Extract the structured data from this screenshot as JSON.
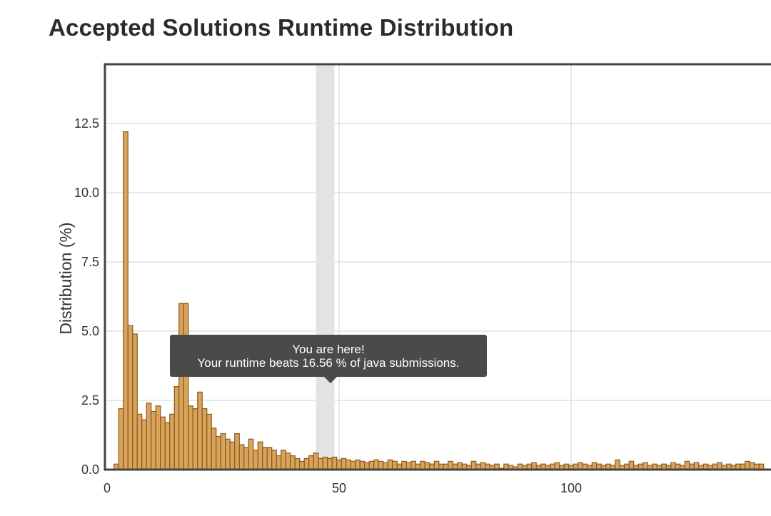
{
  "page": {
    "title": "Accepted Solutions Runtime Distribution"
  },
  "tooltip": {
    "line1": "You are here!",
    "line2": "Your runtime beats 16.56 % of java submissions."
  },
  "colors": {
    "bar_fill": "#d9a35c",
    "bar_stroke": "#8a5a1c",
    "highlight_band": "#e3e3e3",
    "grid": "#dcdcdc",
    "frame": "#444444",
    "tooltip_bg": "#4a4a4a"
  },
  "chart_data": {
    "type": "bar",
    "title": "Accepted Solutions Runtime Distribution",
    "xlabel": "",
    "ylabel": "Distribution (%)",
    "xlim": [
      0,
      142
    ],
    "ylim": [
      0,
      14.5
    ],
    "x_ticks": [
      0,
      50,
      100
    ],
    "x_tick_labels": [
      "0",
      "50",
      "100"
    ],
    "y_ticks": [
      0,
      2.5,
      5,
      7.5,
      10,
      12.5
    ],
    "y_tick_labels": [
      "0.0",
      "2.5",
      "5.0",
      "7.5",
      "10.0",
      "12.5"
    ],
    "grid": true,
    "highlight_x": 47,
    "x": [
      2,
      3,
      4,
      5,
      6,
      7,
      8,
      9,
      10,
      11,
      12,
      13,
      14,
      15,
      16,
      17,
      18,
      19,
      20,
      21,
      22,
      23,
      24,
      25,
      26,
      27,
      28,
      29,
      30,
      31,
      32,
      33,
      34,
      35,
      36,
      37,
      38,
      39,
      40,
      41,
      42,
      43,
      44,
      45,
      46,
      47,
      48,
      49,
      50,
      51,
      52,
      53,
      54,
      55,
      56,
      57,
      58,
      59,
      60,
      61,
      62,
      63,
      64,
      65,
      66,
      67,
      68,
      69,
      70,
      71,
      72,
      73,
      74,
      75,
      76,
      77,
      78,
      79,
      80,
      81,
      82,
      83,
      84,
      85,
      86,
      87,
      88,
      89,
      90,
      91,
      92,
      93,
      94,
      95,
      96,
      97,
      98,
      99,
      100,
      101,
      102,
      103,
      104,
      105,
      106,
      107,
      108,
      109,
      110,
      111,
      112,
      113,
      114,
      115,
      116,
      117,
      118,
      119,
      120,
      121,
      122,
      123,
      124,
      125,
      126,
      127,
      128,
      129,
      130,
      131,
      132,
      133,
      134,
      135,
      136,
      137,
      138,
      139,
      140,
      141
    ],
    "values": [
      0.2,
      2.2,
      12.2,
      5.2,
      4.9,
      2.0,
      1.8,
      2.4,
      2.1,
      2.3,
      1.9,
      1.7,
      2.0,
      3.0,
      6.0,
      6.0,
      2.3,
      2.2,
      2.8,
      2.2,
      2.0,
      1.5,
      1.2,
      1.3,
      1.1,
      1.0,
      1.3,
      0.9,
      0.8,
      1.1,
      0.7,
      1.0,
      0.8,
      0.8,
      0.7,
      0.5,
      0.7,
      0.6,
      0.5,
      0.4,
      0.3,
      0.4,
      0.5,
      0.6,
      0.4,
      0.45,
      0.4,
      0.45,
      0.35,
      0.4,
      0.35,
      0.3,
      0.35,
      0.3,
      0.25,
      0.3,
      0.35,
      0.3,
      0.25,
      0.35,
      0.3,
      0.2,
      0.3,
      0.25,
      0.3,
      0.2,
      0.3,
      0.25,
      0.2,
      0.3,
      0.2,
      0.2,
      0.3,
      0.2,
      0.25,
      0.2,
      0.15,
      0.3,
      0.2,
      0.25,
      0.2,
      0.15,
      0.2,
      0.05,
      0.2,
      0.15,
      0.1,
      0.2,
      0.15,
      0.2,
      0.25,
      0.15,
      0.2,
      0.15,
      0.2,
      0.25,
      0.15,
      0.2,
      0.15,
      0.2,
      0.25,
      0.2,
      0.15,
      0.25,
      0.2,
      0.15,
      0.2,
      0.15,
      0.35,
      0.15,
      0.2,
      0.3,
      0.15,
      0.2,
      0.25,
      0.15,
      0.2,
      0.15,
      0.2,
      0.15,
      0.25,
      0.2,
      0.15,
      0.3,
      0.2,
      0.25,
      0.15,
      0.2,
      0.15,
      0.2,
      0.25,
      0.15,
      0.2,
      0.15,
      0.2,
      0.2,
      0.3,
      0.25,
      0.2,
      0.2
    ]
  }
}
